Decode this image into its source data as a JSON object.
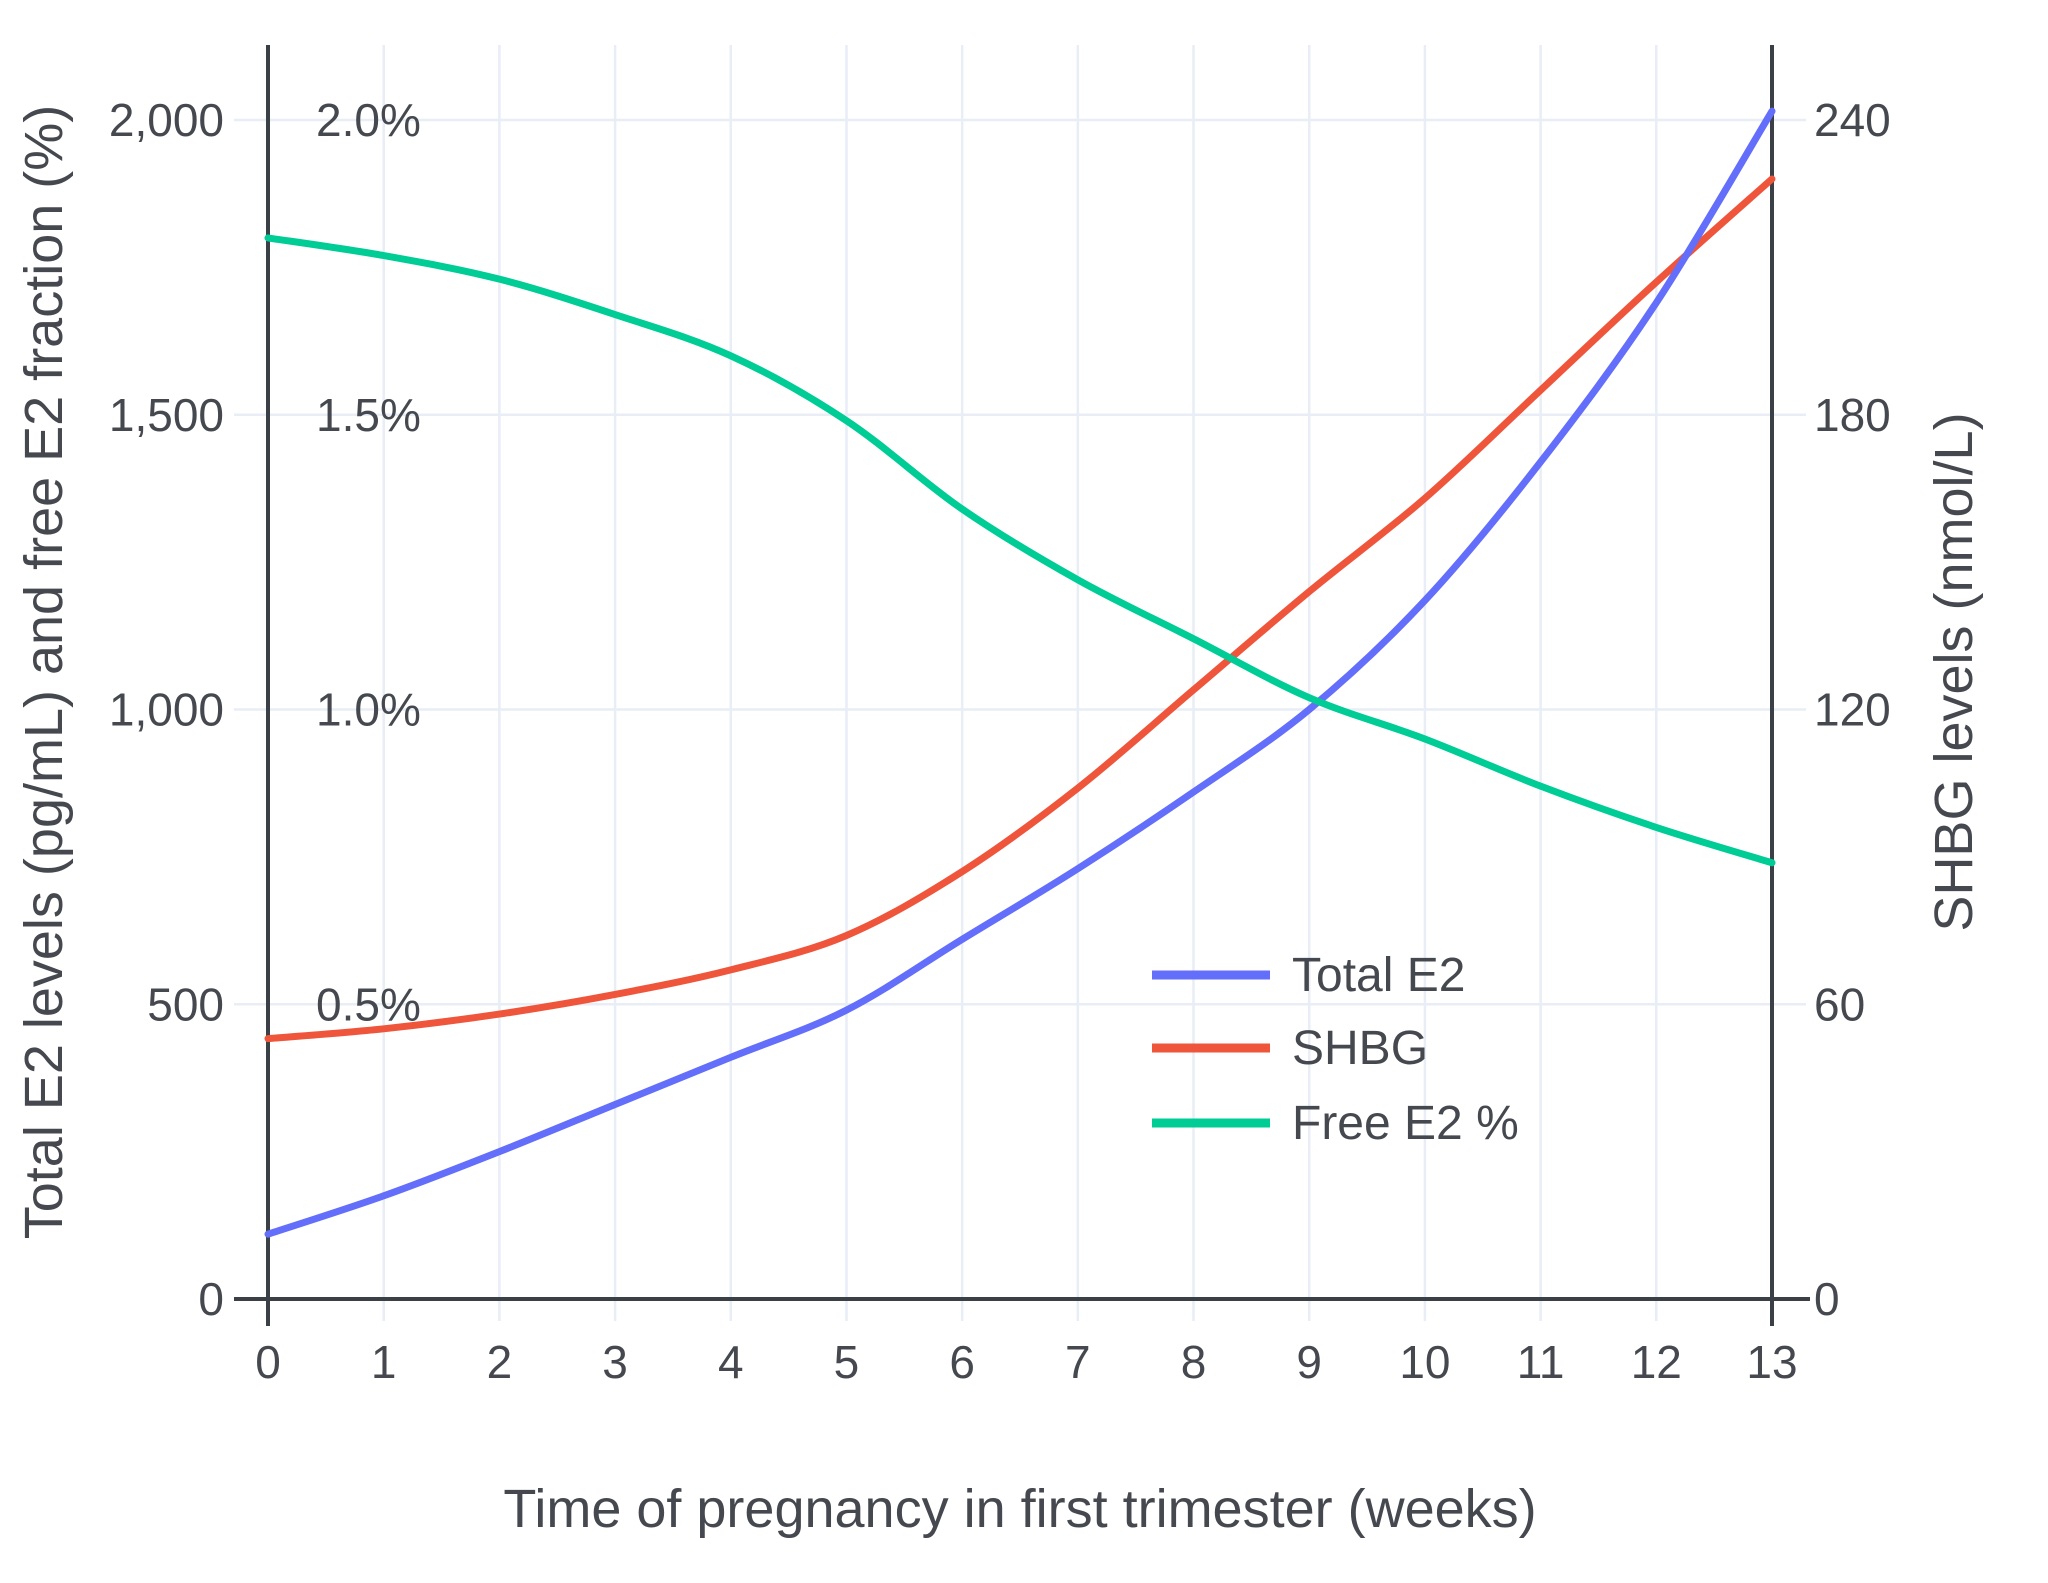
{
  "figure": {
    "background": "#ffffff",
    "text_color": "#45494F",
    "grid_color": "#E8EDF6",
    "axis_line_color": "#3B4046"
  },
  "chart_data": {
    "type": "line",
    "title": "",
    "xlabel": "Time of pregnancy in first trimester (weeks)",
    "x": [
      0,
      1,
      2,
      3,
      4,
      5,
      6,
      7,
      8,
      9,
      10,
      11,
      12,
      13
    ],
    "x_tick_labels": [
      "0",
      "1",
      "2",
      "3",
      "4",
      "5",
      "6",
      "7",
      "8",
      "9",
      "10",
      "11",
      "12",
      "13"
    ],
    "x_range": [
      0,
      13
    ],
    "grid": "on",
    "left_axis": {
      "label": "Total E2 levels (pg/mL) and free E2 fraction (%)",
      "ticks": [
        0,
        500,
        1000,
        1500,
        2000
      ],
      "tick_labels": [
        "0",
        "500",
        "1,000",
        "1,500",
        "2,000"
      ],
      "range": [
        0,
        2125
      ],
      "inner_percent_labels": [
        {
          "value": 500,
          "label": "0.5%"
        },
        {
          "value": 1000,
          "label": "1.0%"
        },
        {
          "value": 1500,
          "label": "1.5%"
        },
        {
          "value": 2000,
          "label": "2.0%"
        }
      ]
    },
    "right_axis": {
      "label": "SHBG levels (nmol/L)",
      "ticks": [
        0,
        60,
        120,
        180,
        240
      ],
      "tick_labels": [
        "0",
        "60",
        "120",
        "180",
        "240"
      ],
      "range": [
        0,
        255
      ]
    },
    "series": [
      {
        "name": "Total E2",
        "unit": "pg/mL",
        "axis": "left",
        "color": "#636EFA",
        "values": [
          110,
          175,
          250,
          330,
          410,
          490,
          610,
          730,
          860,
          1000,
          1185,
          1420,
          1690,
          2015
        ]
      },
      {
        "name": "SHBG",
        "unit": "nmol/L",
        "axis": "right",
        "color": "#EF553B",
        "values": [
          53,
          55,
          58,
          62,
          67,
          74,
          87,
          104,
          124,
          144,
          163,
          185,
          207,
          228
        ]
      },
      {
        "name": "Free E2 %",
        "unit": "%",
        "axis": "percent",
        "color": "#00CC96",
        "values": [
          1.8,
          1.77,
          1.73,
          1.67,
          1.6,
          1.49,
          1.34,
          1.22,
          1.12,
          1.02,
          0.95,
          0.87,
          0.8,
          0.74
        ]
      }
    ],
    "draw_order": [
      1,
      0,
      2
    ],
    "legend": {
      "position": "inside-right",
      "entries": [
        "Total E2",
        "SHBG",
        "Free E2 %"
      ]
    }
  }
}
